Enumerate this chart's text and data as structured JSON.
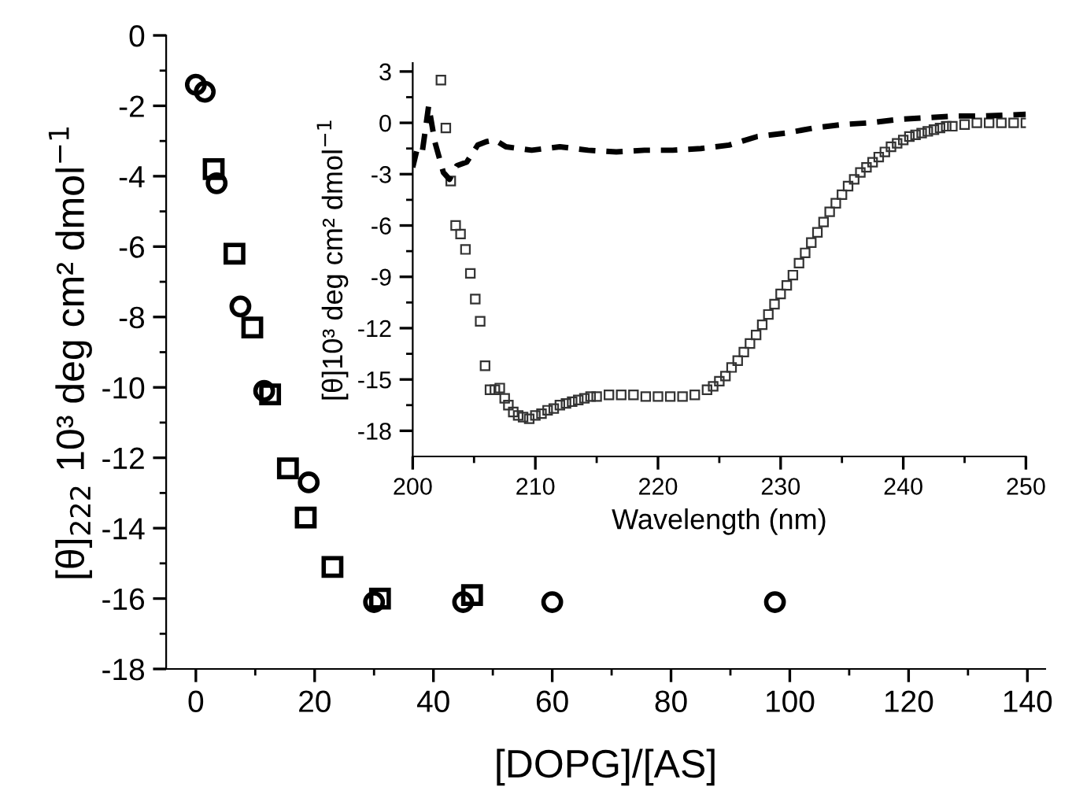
{
  "chart_data": [
    {
      "type": "scatter",
      "xlabel": "[DOPG]/[AS]",
      "ylabel": "[θ]$_{222}$ 10³ deg cm² dmol$^{−1}$",
      "xlim": [
        -5,
        143
      ],
      "ylim": [
        -18,
        0
      ],
      "xticks": [
        0,
        {
          "value": 10,
          "label": null
        },
        20,
        {
          "value": 30,
          "label": null
        },
        40,
        {
          "value": 50,
          "label": null
        },
        60,
        {
          "value": 70,
          "label": null
        },
        80,
        {
          "value": 90,
          "label": null
        },
        100,
        {
          "value": 110,
          "label": null
        },
        120,
        {
          "value": 130,
          "label": null
        },
        140
      ],
      "yticks": [
        -18,
        {
          "value": -17,
          "label": null
        },
        -16,
        {
          "value": -15,
          "label": null
        },
        -14,
        {
          "value": -13,
          "label": null
        },
        -12,
        {
          "value": -11,
          "label": null
        },
        -10,
        {
          "value": -9,
          "label": null
        },
        -8,
        {
          "value": -7,
          "label": null
        },
        -6,
        {
          "value": -5,
          "label": null
        },
        -4,
        {
          "value": -3,
          "label": null
        },
        -2,
        {
          "value": -1,
          "label": null
        },
        0
      ],
      "grid": false,
      "legend": false,
      "series": [
        {
          "color": "#000000",
          "marker": "circle",
          "x": [
            0,
            1.5,
            3.5,
            7.5,
            11.5,
            19,
            30,
            45,
            60,
            97.5
          ],
          "values": [
            -1.4,
            -1.6,
            -4.2,
            -7.7,
            -10.1,
            -12.7,
            -16.1,
            -16.1,
            -16.1,
            -16.1
          ]
        },
        {
          "color": "#000000",
          "marker": "square",
          "x": [
            3,
            6.5,
            9.5,
            12.5,
            15.5,
            18.5,
            23,
            31,
            46.5
          ],
          "values": [
            -3.8,
            -6.2,
            -8.3,
            -10.2,
            -12.3,
            -13.7,
            -15.1,
            -16.0,
            -15.9
          ]
        }
      ]
    },
    {
      "type": "scatter",
      "xlabel": "Wavelength (nm)",
      "ylabel": "[θ]10³ deg cm² dmol$^{−1}$",
      "xlim": [
        200,
        250
      ],
      "ylim": [
        -19.5,
        3.5
      ],
      "xticks": [
        200,
        {
          "value": 205,
          "label": null
        },
        210,
        {
          "value": 215,
          "label": null
        },
        220,
        {
          "value": 225,
          "label": null
        },
        230,
        {
          "value": 235,
          "label": null
        },
        240,
        {
          "value": 245,
          "label": null
        },
        250
      ],
      "yticks": [
        -18,
        {
          "value": -16.5,
          "label": null
        },
        -15,
        {
          "value": -13.5,
          "label": null
        },
        -12,
        {
          "value": -10.5,
          "label": null
        },
        -9,
        {
          "value": -7.5,
          "label": null
        },
        -6,
        {
          "value": -4.5,
          "label": null
        },
        -3,
        {
          "value": -1.5,
          "label": null
        },
        0,
        {
          "value": 1.5,
          "label": null
        },
        3
      ],
      "grid": false,
      "legend": false,
      "series": [
        {
          "color": "#333333",
          "marker": "square",
          "x": [
            202.3,
            202.7,
            203.1,
            203.5,
            203.9,
            204.3,
            204.7,
            205.1,
            205.5,
            205.9,
            206.3,
            206.7,
            207.1,
            207.5,
            207.8,
            208.2,
            208.6,
            209,
            209.5,
            210,
            210.5,
            211,
            211.5,
            212,
            212.5,
            213,
            213.5,
            214,
            214.5,
            215,
            216,
            217,
            218,
            219,
            220,
            221,
            222,
            223,
            224,
            224.5,
            225,
            225.5,
            226,
            226.5,
            227,
            227.5,
            228,
            228.5,
            229,
            229.5,
            230,
            230.5,
            231,
            231.5,
            232,
            232.5,
            233,
            233.5,
            234,
            234.5,
            235,
            235.5,
            236,
            236.5,
            237,
            237.5,
            238,
            238.5,
            239,
            239.5,
            240,
            240.5,
            241,
            241.5,
            242,
            242.5,
            243,
            243.5,
            244,
            245,
            246,
            247,
            248,
            249,
            250
          ],
          "values": [
            2.5,
            -0.3,
            -3.4,
            -6.0,
            -6.5,
            -7.4,
            -8.8,
            -10.3,
            -11.6,
            -14.2,
            -15.6,
            -15.6,
            -15.5,
            -16.1,
            -16.5,
            -16.9,
            -17.1,
            -17.2,
            -17.3,
            -17.1,
            -17.0,
            -16.8,
            -16.7,
            -16.5,
            -16.4,
            -16.3,
            -16.2,
            -16.1,
            -16.0,
            -16.0,
            -15.9,
            -15.9,
            -15.9,
            -16.0,
            -16.0,
            -16.0,
            -16.0,
            -15.9,
            -15.6,
            -15.4,
            -15.1,
            -14.8,
            -14.3,
            -13.9,
            -13.4,
            -12.9,
            -12.4,
            -11.8,
            -11.2,
            -10.6,
            -10.0,
            -9.5,
            -8.9,
            -8.2,
            -7.6,
            -7.0,
            -6.4,
            -5.8,
            -5.2,
            -4.7,
            -4.2,
            -3.7,
            -3.3,
            -2.9,
            -2.6,
            -2.3,
            -2.0,
            -1.7,
            -1.4,
            -1.2,
            -1.0,
            -0.8,
            -0.7,
            -0.6,
            -0.5,
            -0.4,
            -0.3,
            -0.2,
            -0.2,
            -0.1,
            0,
            0,
            0,
            0,
            0
          ]
        },
        {
          "type": "line",
          "color": "#000000",
          "marker": "none",
          "line_style": "dashed",
          "x": [
            200,
            200.4,
            200.8,
            201.3,
            201.8,
            202.5,
            203.0,
            203.6,
            204.4,
            205.3,
            206.0,
            206.7,
            207.6,
            209.7,
            212,
            214.3,
            216.6,
            218.9,
            221.2,
            223.5,
            225.8,
            228.1,
            230.4,
            232.7,
            235,
            237.3,
            239.6,
            241.9,
            244.2,
            246.5,
            250
          ],
          "values": [
            -2.6,
            -1.4,
            -1.6,
            1.0,
            -1.1,
            -2.9,
            -3.3,
            -2.5,
            -2.3,
            -1.3,
            -1.1,
            -1.0,
            -1.4,
            -1.6,
            -1.4,
            -1.6,
            -1.7,
            -1.6,
            -1.6,
            -1.5,
            -1.3,
            -0.8,
            -0.6,
            -0.3,
            -0.1,
            0,
            0.2,
            0.3,
            0.4,
            0.4,
            0.5
          ]
        }
      ]
    }
  ]
}
